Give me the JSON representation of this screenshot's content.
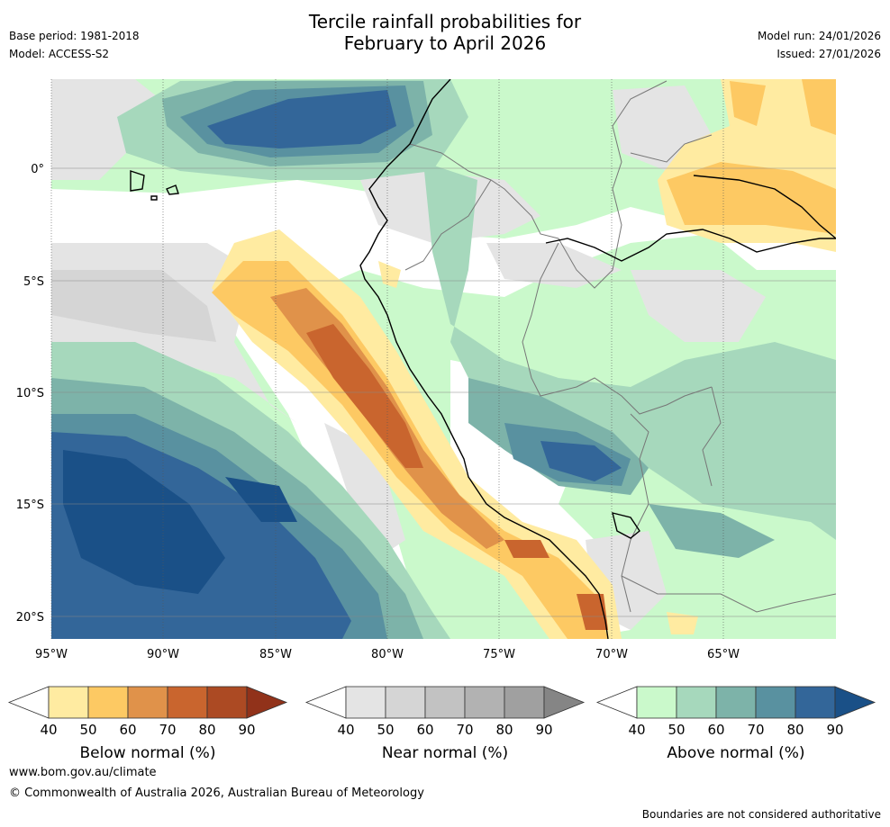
{
  "header": {
    "title_line1": "Tercile rainfall probabilities for",
    "title_line2": "February to April 2026",
    "base_period": "Base period: 1981-2018",
    "model": "Model: ACCESS-S2",
    "model_run": "Model run: 24/01/2026",
    "issued": "Issued: 27/01/2026"
  },
  "map": {
    "lon_labels": [
      "95°W",
      "90°W",
      "85°W",
      "80°W",
      "75°W",
      "70°W",
      "65°W"
    ],
    "lat_labels": [
      "0°",
      "5°S",
      "10°S",
      "15°S",
      "20°S"
    ]
  },
  "colorbars": [
    {
      "name": "below",
      "label": "Below normal (%)",
      "ticks": [
        "40",
        "50",
        "60",
        "70",
        "80",
        "90"
      ],
      "colors": [
        "#ffeba1",
        "#fdc963",
        "#e0924a",
        "#c9652e",
        "#ac4a23"
      ],
      "extend_color": "#91321a"
    },
    {
      "name": "near",
      "label": "Near normal (%)",
      "ticks": [
        "40",
        "50",
        "60",
        "70",
        "80",
        "90"
      ],
      "colors": [
        "#e4e4e4",
        "#d5d5d5",
        "#c2c2c2",
        "#b2b2b2",
        "#a0a0a0"
      ],
      "extend_color": "#858585"
    },
    {
      "name": "above",
      "label": "Above normal (%)",
      "ticks": [
        "40",
        "50",
        "60",
        "70",
        "80",
        "90"
      ],
      "colors": [
        "#caf9cb",
        "#a6d8bc",
        "#7db3a9",
        "#5991a0",
        "#336699"
      ],
      "extend_color": "#1a5087"
    }
  ],
  "footer": {
    "site": "www.bom.gov.au/climate",
    "copyright": "© Commonwealth of Australia 2026, Australian Bureau of Meteorology",
    "disclaimer": "Boundaries are not considered authoritative"
  }
}
